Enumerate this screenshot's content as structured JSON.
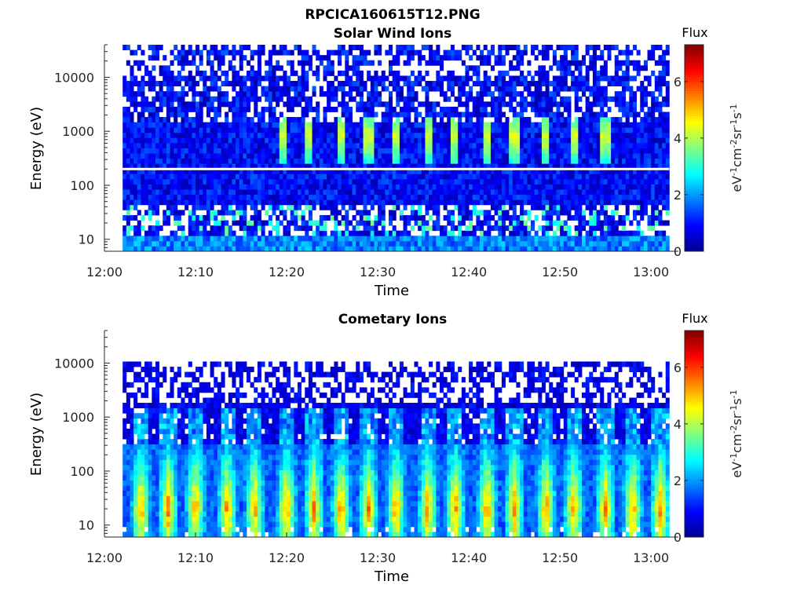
{
  "figure": {
    "title": "RPCICA160615T12.PNG"
  },
  "colormap": [
    "#00008f",
    "#0000ff",
    "#0080ff",
    "#00ffff",
    "#80ff80",
    "#ffff00",
    "#ff8000",
    "#ff0000",
    "#800000"
  ],
  "chart_data": [
    {
      "type": "heatmap",
      "title": "Solar Wind Ions",
      "xlabel": "Time",
      "ylabel": "Energy (eV)",
      "x_ticks": [
        "12:00",
        "12:10",
        "12:20",
        "12:30",
        "12:40",
        "12:50",
        "13:00"
      ],
      "y_ticks": [
        "10",
        "100",
        "1000",
        "10000"
      ],
      "y_scale": "log",
      "ylim": [
        6,
        40000
      ],
      "xlim": [
        "12:00",
        "13:03"
      ],
      "data_start": "12:02",
      "data_end": "13:02",
      "colorbar": {
        "label": "Flux",
        "units": "eV-1cm-2sr-1s-1",
        "ticks": [
          0,
          2,
          4,
          6
        ],
        "range": [
          0,
          7.3
        ]
      },
      "grid": false,
      "pulse_times": [
        "12:19.5",
        "12:22.5",
        "12:26",
        "12:29",
        "12:32",
        "12:35.5",
        "12:38.5",
        "12:42",
        "12:45",
        "12:48.5",
        "12:51.5",
        "12:55"
      ],
      "peak_energy_eV": 800,
      "peak_flux": 4.0
    },
    {
      "type": "heatmap",
      "title": "Cometary Ions",
      "xlabel": "Time",
      "ylabel": "Energy (eV)",
      "x_ticks": [
        "12:00",
        "12:10",
        "12:20",
        "12:30",
        "12:40",
        "12:50",
        "13:00"
      ],
      "y_ticks": [
        "10",
        "100",
        "1000",
        "10000"
      ],
      "y_scale": "log",
      "ylim": [
        6,
        40000
      ],
      "xlim": [
        "12:00",
        "13:03"
      ],
      "data_start": "12:02",
      "data_end": "13:02",
      "colorbar": {
        "label": "Flux",
        "units": "eV-1cm-2sr-1s-1",
        "ticks": [
          0,
          2,
          4,
          6
        ],
        "range": [
          0,
          7.3
        ]
      },
      "grid": false,
      "pulse_times": [
        "12:04",
        "12:07",
        "12:10",
        "12:13.5",
        "12:16.5",
        "12:20",
        "12:23",
        "12:26",
        "12:29",
        "12:32",
        "12:35.5",
        "12:38.5",
        "12:42",
        "12:45",
        "12:48.5",
        "12:51.5",
        "12:55",
        "12:58",
        "13:01"
      ],
      "peak_energy_eV": 20,
      "peak_flux": 5.5
    }
  ]
}
